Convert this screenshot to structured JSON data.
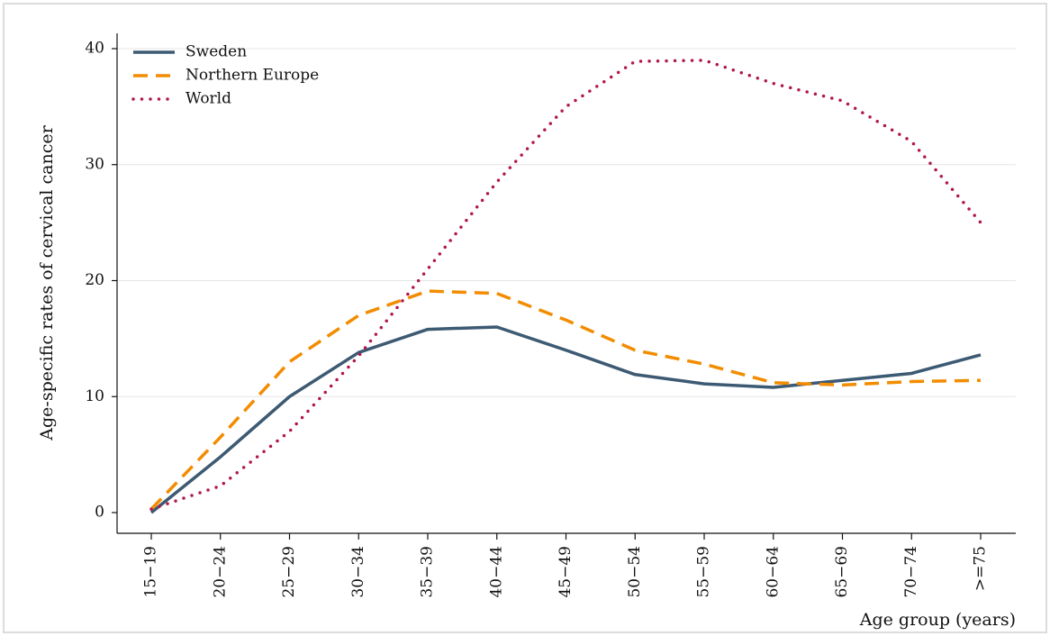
{
  "chart_data": {
    "type": "line",
    "title": "",
    "xlabel": "Age group (years)",
    "ylabel": "Age-specific rates of cervical cancer",
    "categories": [
      "15−19",
      "20−24",
      "25−29",
      "30−34",
      "35−39",
      "40−44",
      "45−49",
      "50−54",
      "55−59",
      "60−64",
      "65−69",
      "70−74",
      ">=75"
    ],
    "ylim": [
      0,
      40
    ],
    "yticks": [
      0,
      10,
      20,
      30,
      40
    ],
    "grid": true,
    "legend_position": "top-left",
    "series": [
      {
        "name": "Sweden",
        "style": "solid",
        "color": "#3d5a73",
        "values": [
          0.0,
          4.8,
          10.0,
          13.8,
          15.8,
          16.0,
          14.0,
          11.9,
          11.1,
          10.8,
          11.4,
          12.0,
          13.6
        ]
      },
      {
        "name": "Northern Europe",
        "style": "dashed",
        "color": "#f28c00",
        "values": [
          0.3,
          6.5,
          13.0,
          17.0,
          19.1,
          18.9,
          16.6,
          14.0,
          12.8,
          11.2,
          11.0,
          11.3,
          11.4
        ]
      },
      {
        "name": "World",
        "style": "dotted",
        "color": "#b0164e",
        "values": [
          0.3,
          2.3,
          7.0,
          13.5,
          21.0,
          28.5,
          35.0,
          38.9,
          39.0,
          37.0,
          35.5,
          32.0,
          25.0
        ]
      }
    ]
  }
}
